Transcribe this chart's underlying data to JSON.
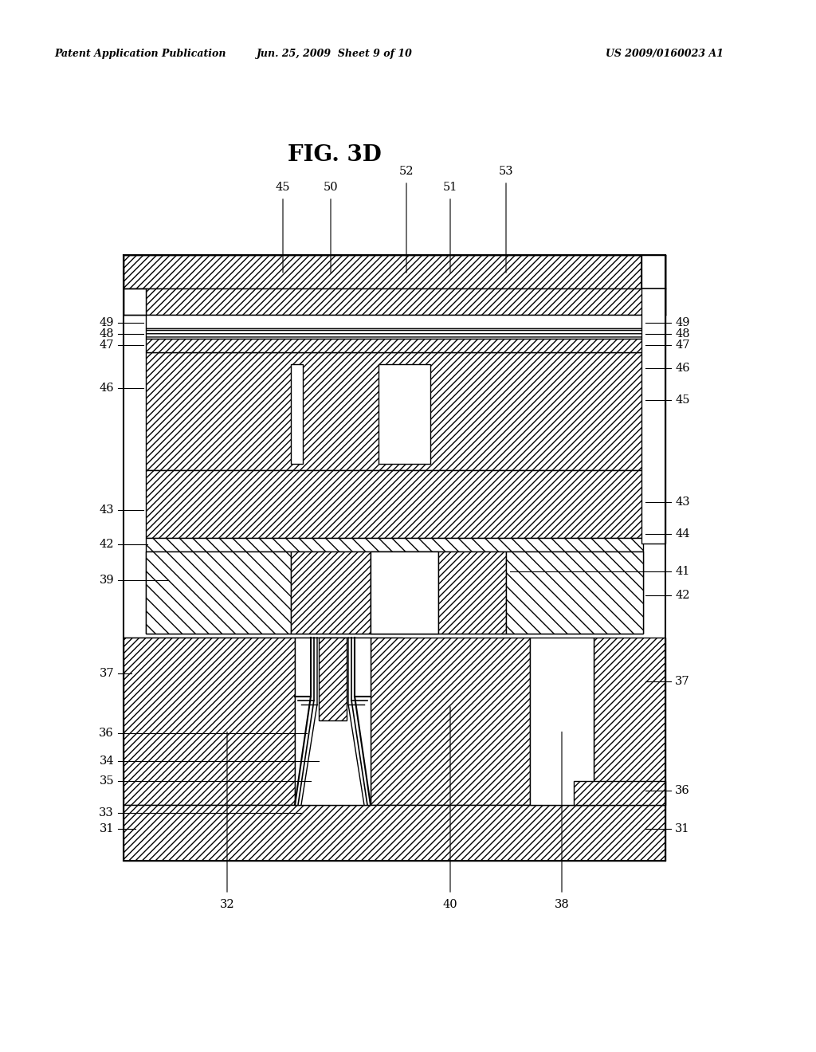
{
  "title": "FIG. 3D",
  "header_left": "Patent Application Publication",
  "header_center": "Jun. 25, 2009  Sheet 9 of 10",
  "header_right": "US 2009/0160023 A1",
  "bg_color": "#ffffff",
  "fig_width": 10.24,
  "fig_height": 13.2,
  "L": 155,
  "R": 835,
  "T": 320,
  "B": 1080,
  "hatch_dense": "////",
  "hatch_back": "\\\\\\\\",
  "lw": 1.0
}
